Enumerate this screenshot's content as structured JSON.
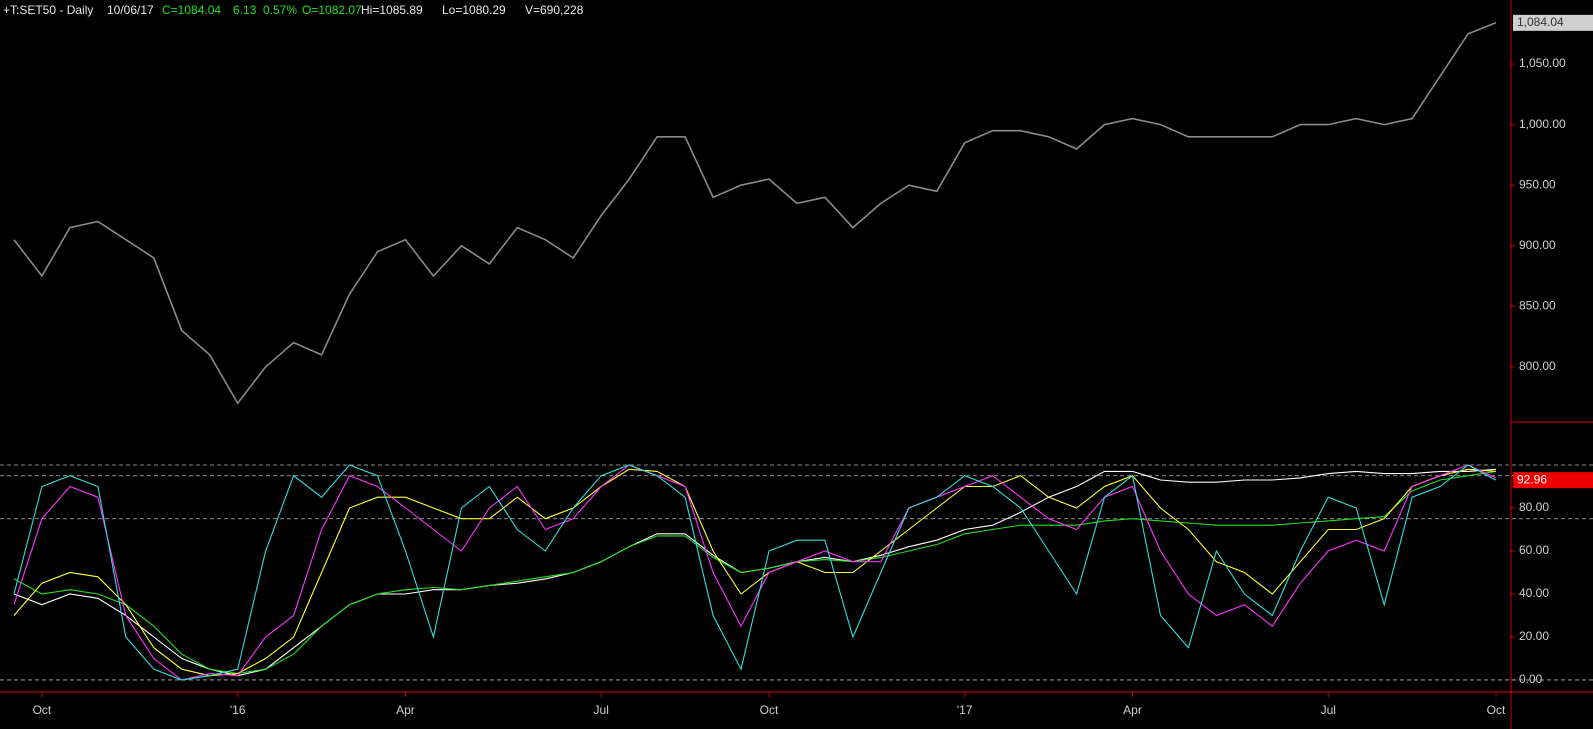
{
  "header": {
    "symbol": "+T:SET50 - Daily",
    "date": "10/06/17",
    "close": "C=1084.04",
    "change": "6.13",
    "change_pct": "0.57%",
    "open": "O=1082.07",
    "high": "Hi=1085.89",
    "low": "Lo=1080.29",
    "volume": "V=690,228"
  },
  "chart_data": [
    {
      "type": "line",
      "ylim": [
        754.5,
        1102.9
      ],
      "yticks": [
        {
          "value": 800,
          "label": "800.00"
        },
        {
          "value": 850,
          "label": "850.00"
        },
        {
          "value": 900,
          "label": "900.00"
        },
        {
          "value": 950,
          "label": "950.00"
        },
        {
          "value": 1000,
          "label": "1,000.00"
        },
        {
          "value": 1050,
          "label": "1,050.00"
        }
      ],
      "series": [
        {
          "color": "#8a8a8a",
          "last_label": "1,084.04",
          "values": [
            905,
            875,
            915,
            920,
            905,
            890,
            830,
            810,
            770,
            800,
            820,
            810,
            860,
            895,
            905,
            875,
            900,
            885,
            915,
            905,
            890,
            925,
            955,
            990,
            990,
            940,
            950,
            955,
            935,
            940,
            915,
            935,
            950,
            945,
            985,
            995,
            995,
            990,
            980,
            1000,
            1005,
            1000,
            990,
            990,
            990,
            990,
            1000,
            1000,
            1005,
            1000,
            1005,
            1040,
            1075,
            1084.04
          ]
        }
      ]
    },
    {
      "type": "line",
      "ylim": [
        -5.6,
        120
      ],
      "yticks": [
        {
          "value": 0,
          "label": "0.00"
        },
        {
          "value": 20,
          "label": "20.00"
        },
        {
          "value": 40,
          "label": "40.00"
        },
        {
          "value": 60,
          "label": "60.00"
        },
        {
          "value": 80,
          "label": "80.00"
        }
      ],
      "hlines": [
        100,
        95,
        75,
        0
      ],
      "categories": [
        null,
        "Oct",
        null,
        null,
        null,
        null,
        null,
        null,
        "'16",
        null,
        null,
        null,
        null,
        null,
        "Apr",
        null,
        null,
        null,
        null,
        null,
        null,
        "Jul",
        null,
        null,
        null,
        null,
        null,
        "Oct",
        null,
        null,
        null,
        null,
        null,
        null,
        "'17",
        null,
        null,
        null,
        null,
        null,
        "Apr",
        null,
        null,
        null,
        null,
        null,
        null,
        "Jul",
        null,
        null,
        null,
        null,
        null,
        "Oct"
      ],
      "series": [
        {
          "color": "#ffffff",
          "values": [
            40,
            35,
            40,
            38,
            30,
            20,
            10,
            5,
            2,
            5,
            15,
            25,
            35,
            40,
            40,
            42,
            42,
            44,
            45,
            47,
            50,
            55,
            62,
            68,
            68,
            58,
            50,
            52,
            55,
            57,
            55,
            58,
            62,
            65,
            70,
            72,
            78,
            85,
            90,
            97,
            97,
            93,
            92,
            92,
            93,
            93,
            94,
            96,
            97,
            96,
            96,
            97,
            97,
            98
          ]
        },
        {
          "color": "#22dd22",
          "values": [
            47,
            40,
            42,
            40,
            35,
            25,
            12,
            5,
            3,
            5,
            12,
            25,
            35,
            40,
            42,
            43,
            42,
            44,
            46,
            48,
            50,
            55,
            62,
            67,
            67,
            57,
            50,
            52,
            55,
            56,
            55,
            57,
            60,
            63,
            68,
            70,
            72,
            72,
            72,
            74,
            75,
            74,
            73,
            72,
            72,
            72,
            73,
            74,
            75,
            76,
            88,
            93,
            95,
            97
          ]
        },
        {
          "color": "#ffff33",
          "values": [
            30,
            45,
            50,
            48,
            35,
            15,
            5,
            2,
            3,
            10,
            20,
            50,
            80,
            85,
            85,
            80,
            75,
            75,
            85,
            75,
            80,
            90,
            98,
            97,
            90,
            60,
            40,
            50,
            55,
            50,
            50,
            60,
            70,
            80,
            90,
            90,
            95,
            85,
            80,
            90,
            95,
            80,
            70,
            55,
            50,
            40,
            55,
            70,
            70,
            75,
            90,
            95,
            98,
            97
          ]
        },
        {
          "color": "#ff33ff",
          "values": [
            35,
            75,
            90,
            85,
            30,
            10,
            0,
            3,
            2,
            20,
            30,
            70,
            95,
            90,
            80,
            70,
            60,
            80,
            90,
            70,
            75,
            90,
            100,
            95,
            90,
            50,
            25,
            50,
            55,
            60,
            55,
            55,
            80,
            85,
            90,
            95,
            85,
            75,
            70,
            85,
            90,
            60,
            40,
            30,
            35,
            25,
            45,
            60,
            65,
            60,
            90,
            95,
            100,
            94
          ]
        },
        {
          "color": "#33dddd",
          "last_label": "92.96",
          "values": [
            40,
            90,
            95,
            90,
            20,
            5,
            0,
            2,
            5,
            60,
            95,
            85,
            100,
            95,
            60,
            20,
            80,
            90,
            70,
            60,
            80,
            95,
            100,
            95,
            85,
            30,
            5,
            60,
            65,
            65,
            20,
            50,
            80,
            85,
            95,
            90,
            80,
            60,
            40,
            85,
            95,
            30,
            15,
            60,
            40,
            30,
            60,
            85,
            80,
            35,
            85,
            90,
            100,
            92.96
          ]
        }
      ]
    }
  ]
}
